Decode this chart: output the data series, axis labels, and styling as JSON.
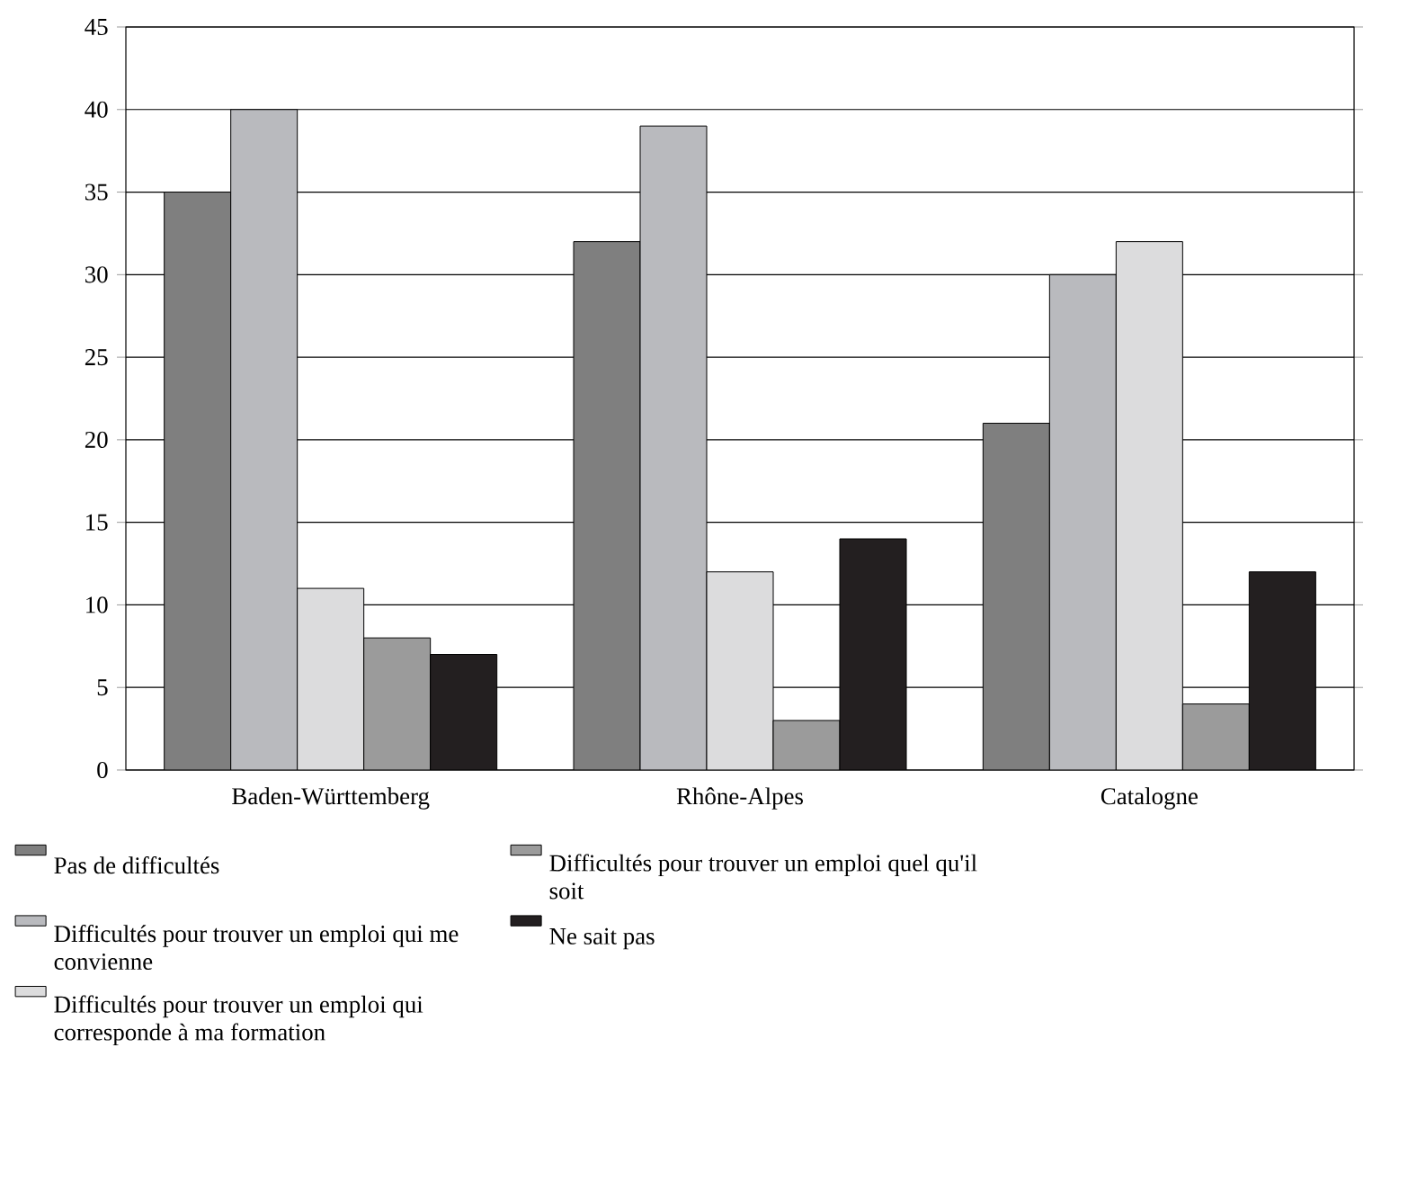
{
  "chart_data": {
    "type": "bar",
    "categories": [
      "Baden-Württemberg",
      "Rhône-Alpes",
      "Catalogne"
    ],
    "series": [
      {
        "name": "Pas de difficultés",
        "color": "#7f7f7f",
        "values": [
          35,
          32,
          21
        ]
      },
      {
        "name": "Difficultés pour trouver un emploi qui me convienne",
        "color": "#b9babe",
        "values": [
          40,
          39,
          30
        ]
      },
      {
        "name": "Difficultés pour trouver un emploi qui corresponde à ma formation",
        "color": "#dcdcdd",
        "values": [
          11,
          12,
          32
        ]
      },
      {
        "name": "Difficultés pour trouver un emploi quel qu'il soit",
        "color": "#9b9b9b",
        "values": [
          8,
          3,
          4
        ]
      },
      {
        "name": "Ne sait pas",
        "color": "#231f20",
        "values": [
          7,
          14,
          12
        ]
      }
    ],
    "ylim": [
      0,
      45
    ],
    "yticks": [
      0,
      5,
      10,
      15,
      20,
      25,
      30,
      35,
      40,
      45
    ],
    "grid": "y",
    "legend": "bottom"
  }
}
